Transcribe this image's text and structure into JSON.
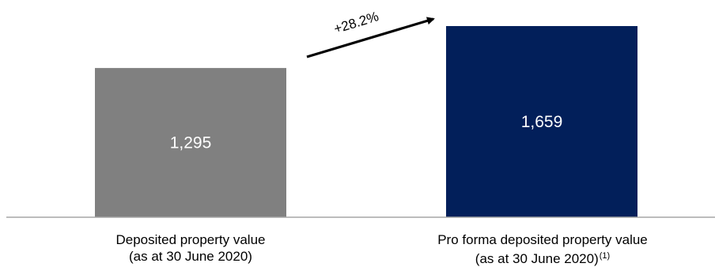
{
  "chart_data": {
    "type": "bar",
    "title": "",
    "xlabel": "",
    "ylabel": "",
    "ylim": [
      0,
      1659
    ],
    "grid": false,
    "legend": "none",
    "categories": [
      "Deposited property value (as at 30 June 2020)",
      "Pro forma deposited property value (as at 30 June 2020)(1)"
    ],
    "category_lines": [
      [
        "Deposited property value",
        "(as at 30 June 2020)"
      ],
      [
        "Pro forma deposited property value",
        "(as at 30 June 2020)"
      ]
    ],
    "category_footnotes": [
      "",
      "(1)"
    ],
    "values": [
      1295,
      1659
    ],
    "data_labels": [
      "1,295",
      "1,659"
    ],
    "bar_colors": [
      "#808080",
      "#021f5a"
    ],
    "annotation": {
      "text": "+28.2%",
      "type": "arrow",
      "from": "bar-1",
      "to": "bar-2"
    }
  },
  "colors": {
    "axis": "#a6a6a6",
    "data_label": "#ffffff",
    "arrow": "#000000"
  }
}
